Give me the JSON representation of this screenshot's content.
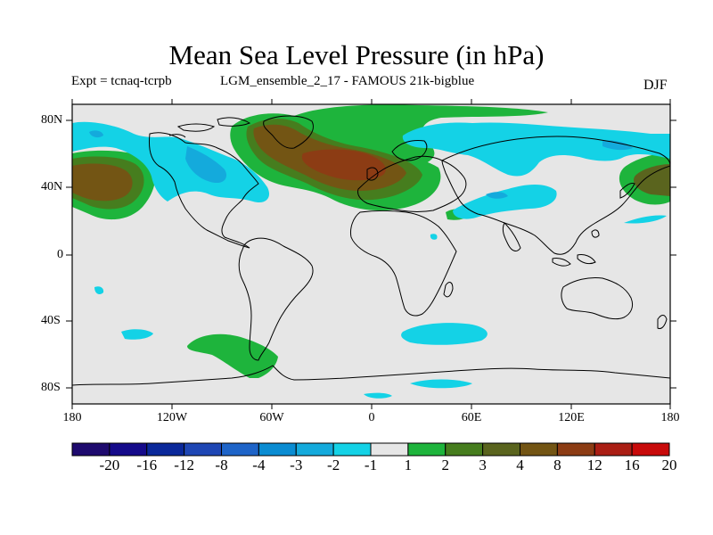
{
  "title": "Mean Sea Level Pressure (in hPa)",
  "expt_label": "Expt = tcnaq-tcrpb",
  "ensemble_label": "LGM_ensemble_2_17 - FAMOUS 21k-bigblue",
  "season": "DJF",
  "lat_labels": [
    "80N",
    "40N",
    "0",
    "40S",
    "80S"
  ],
  "lon_labels": [
    "180",
    "120W",
    "60W",
    "0",
    "60E",
    "120E",
    "180"
  ],
  "colorbar": {
    "labels": [
      "-20",
      "-16",
      "-12",
      "-8",
      "-4",
      "-3",
      "-2",
      "-1",
      "1",
      "2",
      "3",
      "4",
      "8",
      "12",
      "16",
      "20"
    ],
    "colors": [
      "#1e0a6e",
      "#150a8a",
      "#0a289a",
      "#1e46b4",
      "#1e64c8",
      "#0a8cd2",
      "#14aadc",
      "#14d2e6",
      "#e6e6e6",
      "#1eb43c",
      "#467d1e",
      "#5a641e",
      "#735514",
      "#8c3c14",
      "#aa1e14",
      "#c80a0a"
    ]
  },
  "colors": {
    "background": "#e6e6e6",
    "neg1": "#14d2e6",
    "neg2": "#14aadc",
    "pos1": "#1eb43c",
    "pos2": "#467d1e",
    "pos3": "#5a641e",
    "pos4": "#735514",
    "pos5": "#8c3c14"
  }
}
